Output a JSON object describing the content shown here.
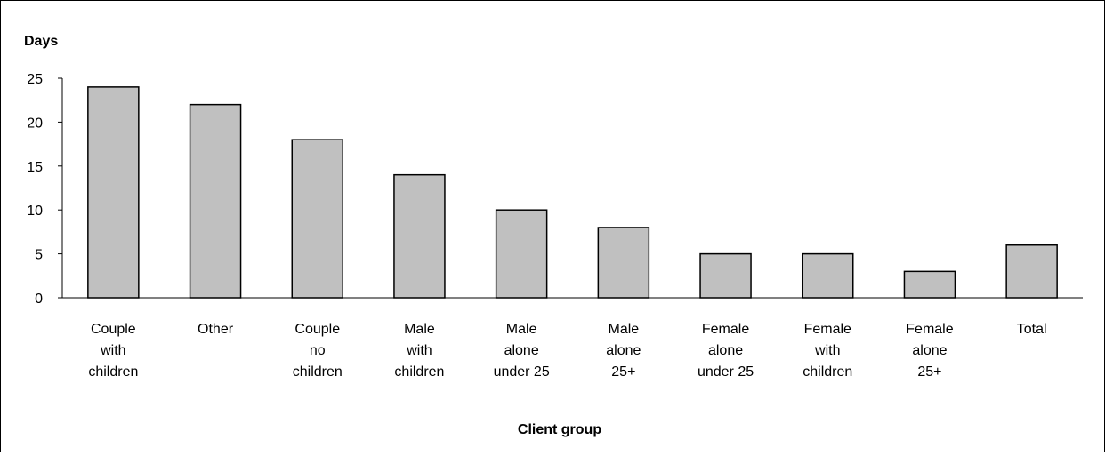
{
  "chart_data": {
    "type": "bar",
    "ylabel": "Days",
    "xlabel": "Client group",
    "ylim": [
      0,
      25
    ],
    "yticks": [
      0,
      5,
      10,
      15,
      20,
      25
    ],
    "grid": false,
    "categories": [
      [
        "Couple",
        "with",
        "children"
      ],
      [
        "Other"
      ],
      [
        "Couple",
        "no",
        "children"
      ],
      [
        "Male",
        "with",
        "children"
      ],
      [
        "Male",
        "alone",
        "under 25"
      ],
      [
        "Male",
        "alone",
        "25+"
      ],
      [
        "Female",
        "alone",
        "under 25"
      ],
      [
        "Female",
        "with",
        "children"
      ],
      [
        "Female",
        "alone",
        "25+"
      ],
      [
        "Total"
      ]
    ],
    "values": [
      24,
      22,
      18,
      14,
      10,
      8,
      5,
      5,
      3,
      6
    ],
    "colors": {
      "bar_fill": "#c0c0c0",
      "bar_stroke": "#000000",
      "axis": "#000000"
    }
  }
}
